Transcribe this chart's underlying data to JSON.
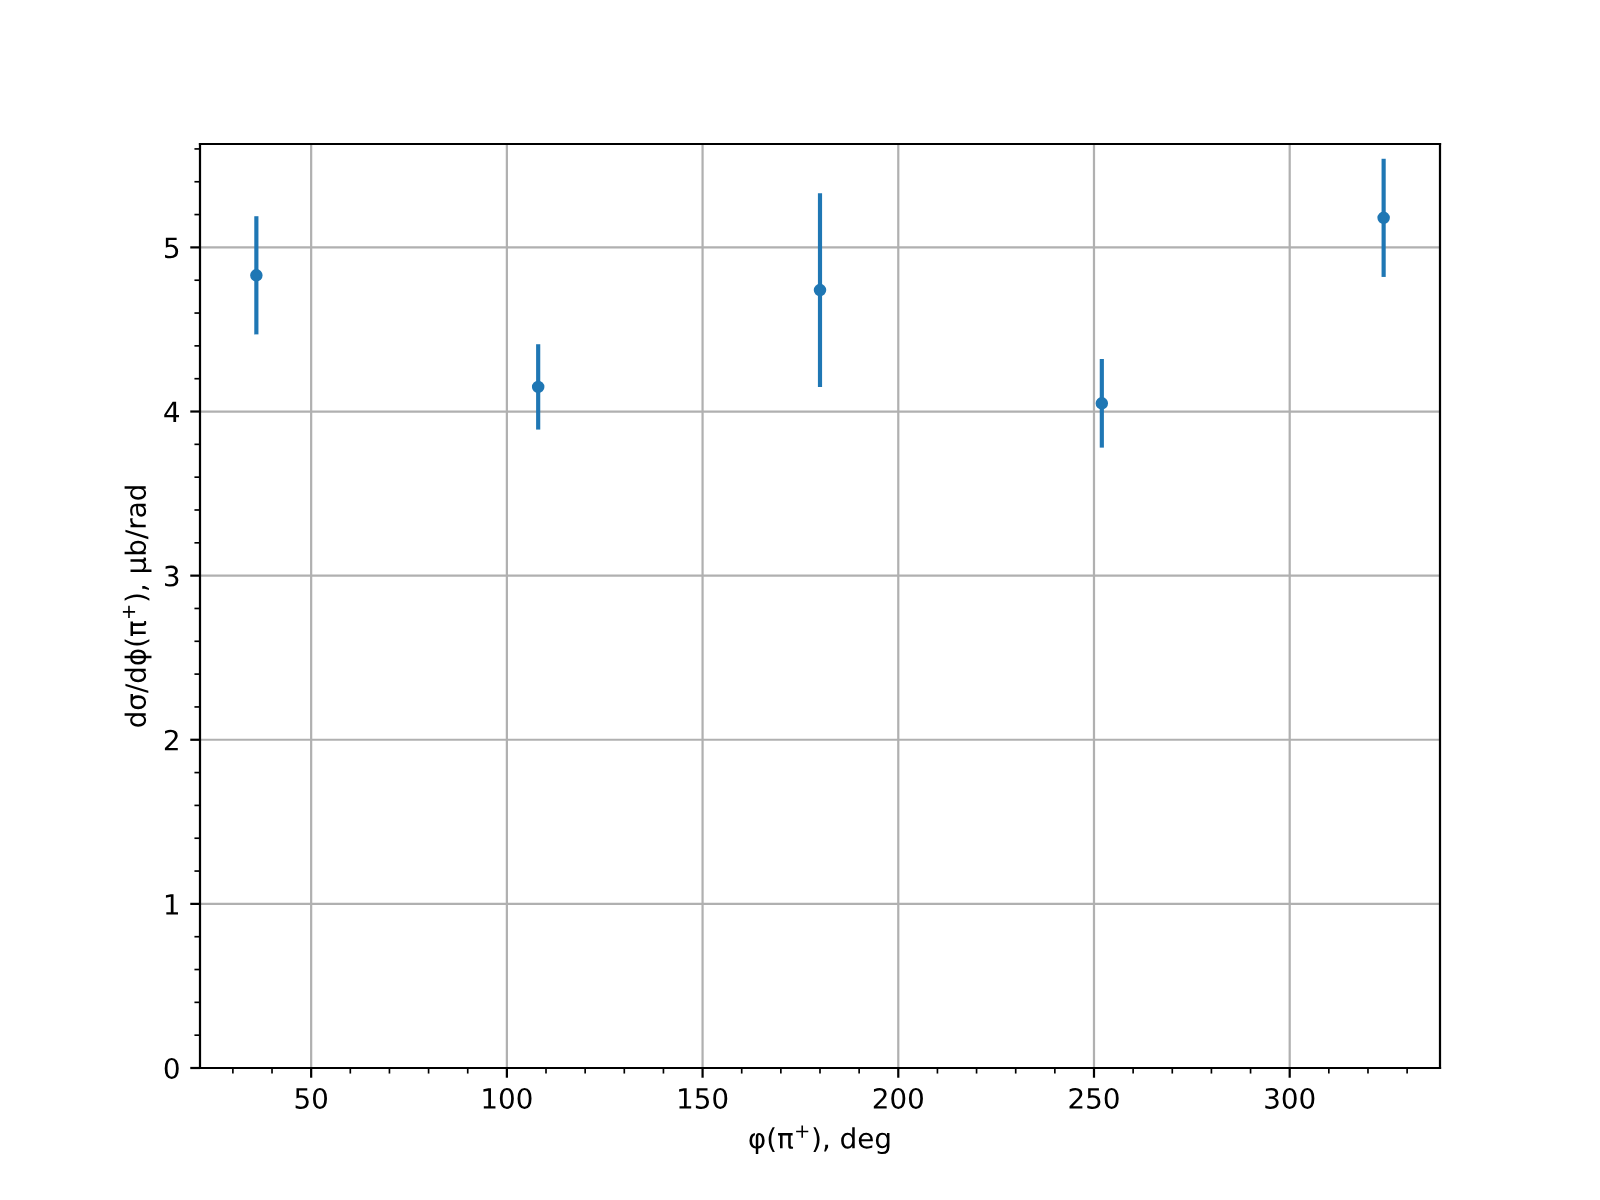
{
  "chart_data": {
    "type": "scatter",
    "xlabel": "φ(π$^{+}$), deg",
    "ylabel": "dσ/dϕ(π$^{+}$), μb/rad",
    "x": [
      36,
      108,
      180,
      252,
      324
    ],
    "series": [
      {
        "color": "#1f77b4",
        "values": [
          4.83,
          4.15,
          4.74,
          4.05,
          5.18
        ],
        "errors": [
          0.36,
          0.26,
          0.59,
          0.27,
          0.36
        ]
      }
    ],
    "xlim": [
      21.6,
      338.4
    ],
    "xticks": [
      50,
      100,
      150,
      200,
      250,
      300
    ],
    "ylim": [
      0,
      5.63
    ],
    "yticks": [
      0,
      1,
      2,
      3,
      4,
      5
    ],
    "grid": true,
    "marker": "circle"
  }
}
